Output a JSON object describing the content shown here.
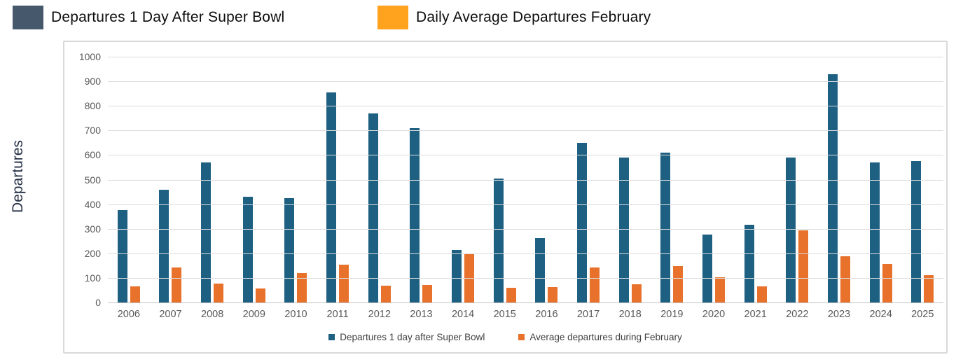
{
  "header_legend": {
    "items": [
      {
        "label": "Departures 1 Day After Super Bowl",
        "color": "#46586B"
      },
      {
        "label": "Daily Average Departures February",
        "color": "#FFA21E"
      }
    ]
  },
  "y_axis": {
    "title": "Departures"
  },
  "chart_data": {
    "type": "bar",
    "title": "",
    "xlabel": "",
    "ylabel": "Departures",
    "ylim": [
      0,
      1000
    ],
    "ytick_step": 100,
    "grid": true,
    "legend_position": "bottom",
    "categories": [
      "2006",
      "2007",
      "2008",
      "2009",
      "2010",
      "2011",
      "2012",
      "2013",
      "2014",
      "2015",
      "2016",
      "2017",
      "2018",
      "2019",
      "2020",
      "2021",
      "2022",
      "2023",
      "2024",
      "2025"
    ],
    "series": [
      {
        "key": "superbowl",
        "name": "Departures 1 day after Super Bowl",
        "color": "#1D6082",
        "values": [
          375,
          460,
          570,
          430,
          425,
          855,
          770,
          710,
          215,
          505,
          262,
          650,
          590,
          610,
          275,
          317,
          590,
          930,
          570,
          575
        ]
      },
      {
        "key": "february",
        "name": "Average departures during February",
        "color": "#E8712B",
        "values": [
          65,
          142,
          77,
          57,
          120,
          155,
          68,
          70,
          198,
          60,
          62,
          142,
          73,
          147,
          103,
          65,
          293,
          188,
          158,
          110
        ]
      }
    ]
  }
}
